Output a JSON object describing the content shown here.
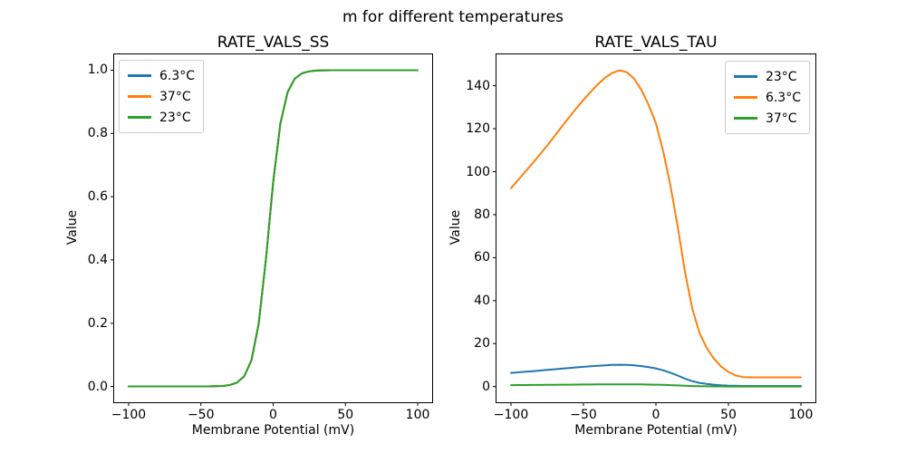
{
  "figure": {
    "suptitle": "m for different temperatures"
  },
  "palette": {
    "blue": "#1f77b4",
    "orange": "#ff7f0e",
    "green": "#2ca02c",
    "axis": "#000000",
    "legend_border": "#cccccc",
    "background": "#ffffff"
  },
  "chart_data": [
    {
      "type": "line",
      "title": "RATE_VALS_SS",
      "xlabel": "Membrane Potential (mV)",
      "ylabel": "Value",
      "xlim": [
        -110,
        110
      ],
      "ylim": [
        -0.05,
        1.05
      ],
      "xtick_values": [
        -100,
        -50,
        0,
        50,
        100
      ],
      "xtick_labels": [
        "−100",
        "−50",
        "0",
        "50",
        "100"
      ],
      "ytick_values": [
        0.0,
        0.2,
        0.4,
        0.6,
        0.8,
        1.0
      ],
      "ytick_labels": [
        "0.0",
        "0.2",
        "0.4",
        "0.6",
        "0.8",
        "1.0"
      ],
      "legend_position": "upper-left",
      "grid": false,
      "x": [
        -100,
        -95,
        -90,
        -85,
        -80,
        -75,
        -70,
        -65,
        -60,
        -55,
        -50,
        -45,
        -40,
        -35,
        -30,
        -25,
        -20,
        -15,
        -10,
        -5,
        0,
        5,
        10,
        15,
        20,
        25,
        30,
        35,
        40,
        45,
        50,
        55,
        60,
        65,
        70,
        75,
        80,
        85,
        90,
        95,
        100
      ],
      "series": [
        {
          "name": "6.3°C",
          "color": "#1f77b4",
          "values": [
            0,
            0,
            0,
            0,
            0,
            0,
            0,
            0,
            0,
            0,
            0,
            0.0002,
            0.0006,
            0.0017,
            0.0045,
            0.0122,
            0.0323,
            0.0832,
            0.1978,
            0.4013,
            0.6457,
            0.832,
            0.9309,
            0.9734,
            0.99,
            0.9963,
            0.9986,
            0.9995,
            0.9998,
            0.9999,
            1,
            1,
            1,
            1,
            1,
            1,
            1,
            1,
            1,
            1,
            1
          ]
        },
        {
          "name": "37°C",
          "color": "#ff7f0e",
          "values": [
            0,
            0,
            0,
            0,
            0,
            0,
            0,
            0,
            0,
            0,
            0,
            0.0002,
            0.0006,
            0.0017,
            0.0045,
            0.0122,
            0.0323,
            0.0832,
            0.1978,
            0.4013,
            0.6457,
            0.832,
            0.9309,
            0.9734,
            0.99,
            0.9963,
            0.9986,
            0.9995,
            0.9998,
            0.9999,
            1,
            1,
            1,
            1,
            1,
            1,
            1,
            1,
            1,
            1,
            1
          ]
        },
        {
          "name": "23°C",
          "color": "#2ca02c",
          "values": [
            0,
            0,
            0,
            0,
            0,
            0,
            0,
            0,
            0,
            0,
            0,
            0.0002,
            0.0006,
            0.0017,
            0.0045,
            0.0122,
            0.0323,
            0.0832,
            0.1978,
            0.4013,
            0.6457,
            0.832,
            0.9309,
            0.9734,
            0.99,
            0.9963,
            0.9986,
            0.9995,
            0.9998,
            0.9999,
            1,
            1,
            1,
            1,
            1,
            1,
            1,
            1,
            1,
            1,
            1
          ]
        }
      ]
    },
    {
      "type": "line",
      "title": "RATE_VALS_TAU",
      "xlabel": "Membrane Potential (mV)",
      "ylabel": "Value",
      "xlim": [
        -110,
        110
      ],
      "ylim": [
        -7.3,
        154.6
      ],
      "xtick_values": [
        -100,
        -50,
        0,
        50,
        100
      ],
      "xtick_labels": [
        "−100",
        "−50",
        "0",
        "50",
        "100"
      ],
      "ytick_values": [
        0,
        20,
        40,
        60,
        80,
        100,
        120,
        140
      ],
      "ytick_labels": [
        "0",
        "20",
        "40",
        "60",
        "80",
        "100",
        "120",
        "140"
      ],
      "legend_position": "upper-right",
      "grid": false,
      "x": [
        -100,
        -95,
        -90,
        -85,
        -80,
        -75,
        -70,
        -65,
        -60,
        -55,
        -50,
        -45,
        -40,
        -35,
        -30,
        -25,
        -20,
        -15,
        -10,
        -5,
        0,
        5,
        10,
        15,
        20,
        25,
        30,
        35,
        40,
        45,
        50,
        55,
        60,
        65,
        70,
        75,
        80,
        85,
        90,
        95,
        100
      ],
      "series": [
        {
          "name": "23°C",
          "color": "#1f77b4",
          "values": [
            6.37,
            6.63,
            6.9,
            7.17,
            7.45,
            7.74,
            8.03,
            8.34,
            8.63,
            8.92,
            9.2,
            9.46,
            9.7,
            9.92,
            10.07,
            10.15,
            10.09,
            9.88,
            9.52,
            9.03,
            8.45,
            7.55,
            6.45,
            5.14,
            3.69,
            2.52,
            1.72,
            1.24,
            0.9,
            0.64,
            0.47,
            0.36,
            0.3,
            0.3,
            0.3,
            0.3,
            0.3,
            0.3,
            0.3,
            0.3,
            0.3
          ]
        },
        {
          "name": "6.3°C",
          "color": "#ff7f0e",
          "values": [
            92.3,
            96.2,
            100.1,
            104,
            108,
            112.2,
            116.5,
            120.9,
            125.2,
            129.4,
            133.4,
            137.2,
            140.7,
            143.8,
            146,
            147.2,
            146.3,
            143.2,
            138,
            131,
            122.5,
            109.5,
            93.5,
            74.5,
            53.5,
            36.5,
            25,
            18,
            13,
            9.3,
            6.8,
            5.2,
            4.4,
            4.3,
            4.3,
            4.3,
            4.3,
            4.3,
            4.3,
            4.3,
            4.3
          ]
        },
        {
          "name": "37°C",
          "color": "#2ca02c",
          "values": [
            0.66,
            0.69,
            0.72,
            0.74,
            0.77,
            0.8,
            0.83,
            0.86,
            0.89,
            0.92,
            0.95,
            0.98,
            1.01,
            1.03,
            1.04,
            1.05,
            1.05,
            1.02,
            0.99,
            0.94,
            0.88,
            0.78,
            0.67,
            0.53,
            0.38,
            0.26,
            0.18,
            0.13,
            0.09,
            0.07,
            0.05,
            0.04,
            0.03,
            0.03,
            0.03,
            0.03,
            0.03,
            0.03,
            0.03,
            0.03,
            0.03
          ]
        }
      ]
    }
  ]
}
